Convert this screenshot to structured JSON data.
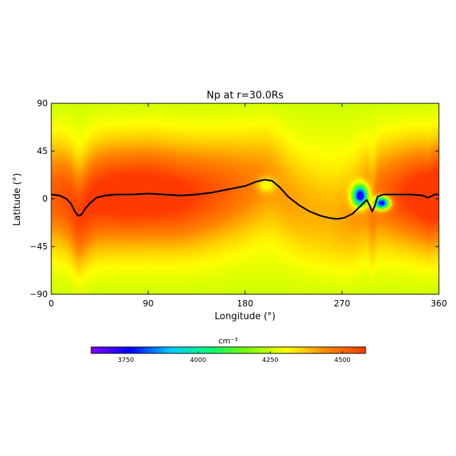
{
  "chart_data": {
    "type": "heatmap",
    "title": "Np at r=30.0Rs",
    "xlabel": "Longitude (°)",
    "ylabel": "Latitude (°)",
    "xlim": [
      0,
      360
    ],
    "ylim": [
      -90,
      90
    ],
    "x_ticks": [
      0,
      90,
      180,
      270,
      360
    ],
    "y_ticks": [
      -90,
      -45,
      0,
      45,
      90
    ],
    "x_tick_labels": [
      "0",
      "90",
      "180",
      "270",
      "360"
    ],
    "y_tick_labels": [
      "−90",
      "−45",
      "0",
      "45",
      "90"
    ],
    "colorbar": {
      "label": "cm⁻³",
      "range": [
        3630,
        4580
      ],
      "ticks": [
        3750,
        4000,
        4250,
        4500
      ],
      "tick_labels": [
        "3750",
        "4000",
        "4250",
        "4500"
      ],
      "colors": [
        "#7f00ff",
        "#0000ff",
        "#00c8ff",
        "#00ff78",
        "#7dff00",
        "#ffff00",
        "#ff8800",
        "#ff3a00"
      ]
    },
    "field": {
      "background": 4300,
      "max_value": 4560,
      "features": [
        {
          "kind": "high-density band",
          "lon": 80,
          "lat": -5,
          "peak": 4560
        },
        {
          "kind": "high-density band",
          "lon": 360,
          "lat": -10,
          "peak": 4470
        },
        {
          "kind": "local minimum",
          "lon": 287,
          "lat": 3,
          "value": 3680
        },
        {
          "kind": "local minimum",
          "lon": 307,
          "lat": -4,
          "value": 3710
        },
        {
          "kind": "local minimum",
          "lon": 200,
          "lat": 13,
          "value": 4250
        }
      ]
    },
    "neutral_line": {
      "color": "#000000",
      "lon": [
        0,
        8,
        14,
        18,
        22,
        25,
        28,
        31,
        36,
        42,
        50,
        60,
        75,
        90,
        105,
        120,
        135,
        150,
        165,
        180,
        190,
        198,
        205,
        212,
        220,
        230,
        240,
        250,
        258,
        265,
        272,
        280,
        286,
        290,
        293,
        296,
        298,
        300,
        303,
        308,
        315,
        325,
        335,
        345,
        350,
        356,
        360
      ],
      "lat": [
        4,
        3,
        0,
        -4,
        -12,
        -16,
        -15,
        -10,
        -4,
        1,
        3,
        4,
        4,
        5,
        4,
        3,
        4,
        6,
        9,
        12,
        16,
        18,
        17,
        11,
        2,
        -6,
        -12,
        -16,
        -18,
        -19,
        -18,
        -14,
        -8,
        -4,
        -1,
        -7,
        -12,
        -8,
        2,
        4,
        4,
        4,
        4,
        3,
        1,
        4,
        4
      ]
    }
  }
}
